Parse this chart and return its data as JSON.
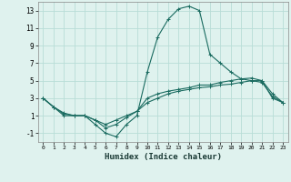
{
  "xlabel": "Humidex (Indice chaleur)",
  "bg_color": "#dff2ee",
  "grid_color": "#b8ddd7",
  "line_color": "#1a6b60",
  "xlim": [
    -0.5,
    23.5
  ],
  "ylim": [
    -2,
    14
  ],
  "yticks": [
    -1,
    1,
    3,
    5,
    7,
    9,
    11,
    13
  ],
  "xticks": [
    0,
    1,
    2,
    3,
    4,
    5,
    6,
    7,
    8,
    9,
    10,
    11,
    12,
    13,
    14,
    15,
    16,
    17,
    18,
    19,
    20,
    21,
    22,
    23
  ],
  "series": [
    {
      "x": [
        0,
        1,
        2,
        3,
        4,
        5,
        6,
        7,
        8,
        9,
        10,
        11,
        12,
        13,
        14,
        15,
        16,
        17,
        18,
        19,
        20,
        21,
        22,
        23
      ],
      "y": [
        3,
        2,
        1,
        1,
        1,
        0,
        -1,
        -1.4,
        0,
        1,
        6,
        10,
        12,
        13.2,
        13.5,
        13,
        8,
        7,
        6,
        5.2,
        5,
        5,
        3,
        2.5
      ]
    },
    {
      "x": [
        0,
        1,
        2,
        3,
        4,
        5,
        6,
        7,
        8,
        9,
        10,
        11,
        12,
        13,
        14,
        15,
        16,
        17,
        18,
        19,
        20,
        21,
        22,
        23
      ],
      "y": [
        3,
        2,
        1.3,
        1,
        1,
        0.5,
        -0.4,
        0,
        0.8,
        1.5,
        3,
        3.5,
        3.8,
        4,
        4.2,
        4.5,
        4.5,
        4.8,
        5,
        5.2,
        5.3,
        5,
        3.5,
        2.5
      ]
    },
    {
      "x": [
        0,
        1,
        2,
        3,
        4,
        5,
        6,
        7,
        8,
        9,
        10,
        11,
        12,
        13,
        14,
        15,
        16,
        17,
        18,
        19,
        20,
        21,
        22,
        23
      ],
      "y": [
        3,
        2,
        1.2,
        1,
        1,
        0.5,
        0,
        0.5,
        1,
        1.5,
        2.5,
        3,
        3.5,
        3.8,
        4,
        4.2,
        4.3,
        4.5,
        4.6,
        4.8,
        5,
        4.8,
        3.2,
        2.5
      ]
    }
  ]
}
